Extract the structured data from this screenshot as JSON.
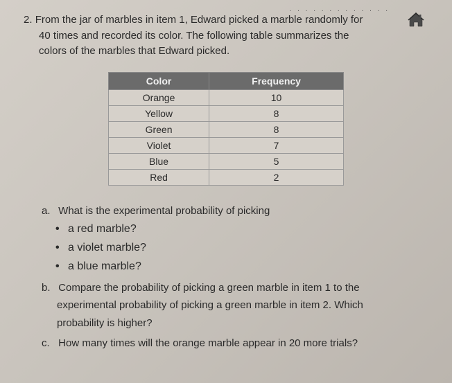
{
  "decoration": {
    "dots": ". . . . . . . . . . . . ."
  },
  "icon": {
    "home_fill": "#4a4a4a",
    "home_stroke": "#2a2a2a"
  },
  "question": {
    "number": "2.",
    "line1": "From the jar of marbles in item 1, Edward picked a marble randomly for",
    "line2": "40 times and recorded its color. The following table summarizes the",
    "line3": "colors of the marbles that Edward picked."
  },
  "table": {
    "header_bg": "#6b6b6b",
    "header_color": "#f0f0f0",
    "cell_bg": "#d6d1ca",
    "border_color": "#999999",
    "columns": [
      "Color",
      "Frequency"
    ],
    "rows": [
      [
        "Orange",
        "10"
      ],
      [
        "Yellow",
        "8"
      ],
      [
        "Green",
        "8"
      ],
      [
        "Violet",
        "7"
      ],
      [
        "Blue",
        "5"
      ],
      [
        "Red",
        "2"
      ]
    ]
  },
  "parts": {
    "a": {
      "label": "a.",
      "text": "What is the experimental probability of picking",
      "bullets": [
        "a red marble?",
        "a violet marble?",
        "a blue marble?"
      ]
    },
    "b": {
      "label": "b.",
      "line1": "Compare the probability of picking a green marble in item 1 to the",
      "line2": "experimental probability of picking a green marble in item 2. Which",
      "line3": "probability is higher?"
    },
    "c": {
      "label": "c.",
      "text": "How many times will the orange marble appear in 20 more trials?"
    }
  }
}
